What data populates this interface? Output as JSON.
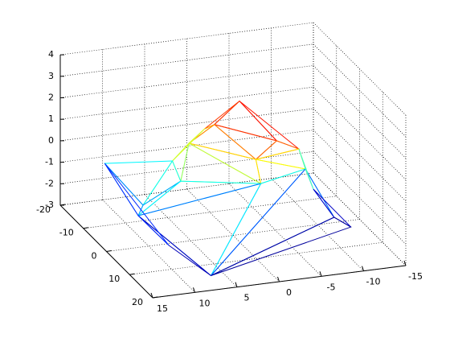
{
  "chart_data": {
    "type": "mesh3d",
    "x": [
      -3.5,
      10,
      7,
      9.7,
      -12.6,
      -11.5,
      -1.6,
      -1.8,
      -8.1,
      -8.5,
      2.4,
      -0.2,
      -4.6,
      5,
      8.7,
      9.9,
      -1,
      4.2,
      -11.4
    ],
    "y": [
      -10,
      -19,
      16,
      -5.6,
      5,
      -7.2,
      6.2,
      3.3,
      -1.1,
      0.3,
      -10.3,
      -8.8,
      2.1,
      -4.4,
      4,
      -2.8,
      -15.9,
      -10.9,
      2.1
    ],
    "z": [
      2,
      -1.2,
      -2.8,
      -2.2,
      -2.7,
      -2.2,
      0,
      0.8,
      0.5,
      -0.3,
      0.3,
      1.2,
      1.4,
      -0.7,
      -2.6,
      -1.4,
      0.2,
      -0.5,
      -2.5
    ],
    "triangles": [
      [
        0,
        11,
        12
      ],
      [
        0,
        12,
        8
      ],
      [
        0,
        16,
        11
      ],
      [
        11,
        10,
        16
      ],
      [
        11,
        12,
        7
      ],
      [
        11,
        7,
        10
      ],
      [
        12,
        7,
        8
      ],
      [
        8,
        7,
        9
      ],
      [
        7,
        6,
        9
      ],
      [
        7,
        10,
        6
      ],
      [
        10,
        13,
        6
      ],
      [
        10,
        17,
        13
      ],
      [
        16,
        17,
        10
      ],
      [
        17,
        1,
        15
      ],
      [
        17,
        15,
        13
      ],
      [
        1,
        15,
        3
      ],
      [
        15,
        13,
        3
      ],
      [
        13,
        6,
        3
      ],
      [
        3,
        6,
        2
      ],
      [
        3,
        14,
        2
      ],
      [
        6,
        2,
        9
      ],
      [
        9,
        2,
        18
      ],
      [
        9,
        5,
        18
      ],
      [
        8,
        9,
        5
      ],
      [
        18,
        4,
        5
      ],
      [
        18,
        2,
        4
      ],
      [
        1,
        3,
        14
      ]
    ],
    "colormap": "jet",
    "xlim": [
      -15,
      15
    ],
    "ylim": [
      -20,
      20
    ],
    "zlim": [
      -3,
      4
    ],
    "xticks": [
      -15,
      -10,
      -5,
      0,
      5,
      10,
      15
    ],
    "yticks": [
      -20,
      -10,
      0,
      10,
      20
    ],
    "zticks": [
      -3,
      -2,
      -1,
      0,
      1,
      2,
      3,
      4
    ],
    "grid": true
  }
}
